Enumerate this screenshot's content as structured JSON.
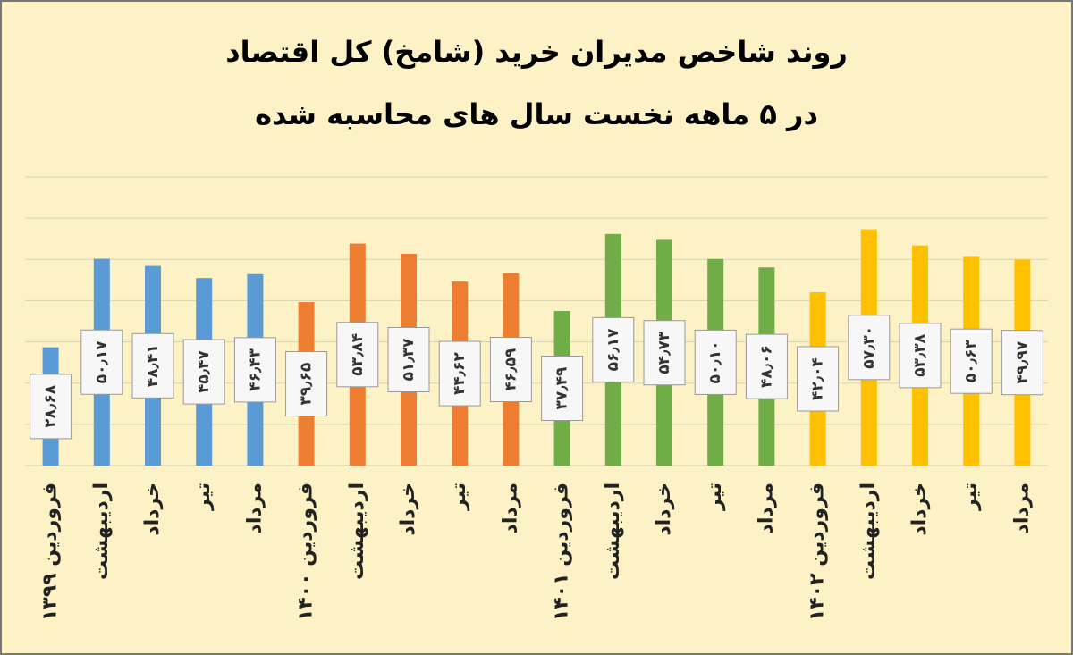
{
  "chart_data": {
    "type": "bar",
    "title": "روند شاخص مدیران خرید (شامخ) کل اقتصاد",
    "subtitle": "در ۵ ماهه نخست سال های محاسبه شده",
    "categories": [
      "فروردین ۱۳۹۹",
      "اردیبهشت",
      "خرداد",
      "تیر",
      "مرداد",
      "فروردین ۱۴۰۰",
      "اردیبهشت",
      "خرداد",
      "تیر",
      "مرداد",
      "فروردین ۱۴۰۱",
      "اردیبهشت",
      "خرداد",
      "تیر",
      "مرداد",
      "فروردین ۱۴۰۲",
      "اردیبهشت",
      "خرداد",
      "تیر",
      "مرداد"
    ],
    "values": [
      28.68,
      50.17,
      48.41,
      45.47,
      46.43,
      39.65,
      53.84,
      51.37,
      44.62,
      46.59,
      37.49,
      56.17,
      54.73,
      50.1,
      48.06,
      42.04,
      57.3,
      53.38,
      50.63,
      49.97
    ],
    "value_labels": [
      "۲۸٫۶۸",
      "۵۰٫۱۷",
      "۴۸٫۴۱",
      "۴۵٫۴۷",
      "۴۶٫۴۳",
      "۳۹٫۶۵",
      "۵۳٫۸۴",
      "۵۱٫۳۷",
      "۴۴٫۶۲",
      "۴۶٫۵۹",
      "۳۷٫۴۹",
      "۵۶٫۱۷",
      "۵۴٫۷۳",
      "۵۰٫۱۰",
      "۴۸٫۰۶",
      "۴۲٫۰۴",
      "۵۷٫۳۰",
      "۵۳٫۳۸",
      "۵۰٫۶۳",
      "۴۹٫۹۷"
    ],
    "colors": [
      "#5b9bd5",
      "#5b9bd5",
      "#5b9bd5",
      "#5b9bd5",
      "#5b9bd5",
      "#ed7d31",
      "#ed7d31",
      "#ed7d31",
      "#ed7d31",
      "#ed7d31",
      "#70ad47",
      "#70ad47",
      "#70ad47",
      "#70ad47",
      "#70ad47",
      "#ffc000",
      "#ffc000",
      "#ffc000",
      "#ffc000",
      "#ffc000"
    ],
    "ylim": [
      0,
      70
    ],
    "yticks": [
      0,
      10,
      20,
      30,
      40,
      50,
      60,
      70
    ],
    "grid": true
  }
}
